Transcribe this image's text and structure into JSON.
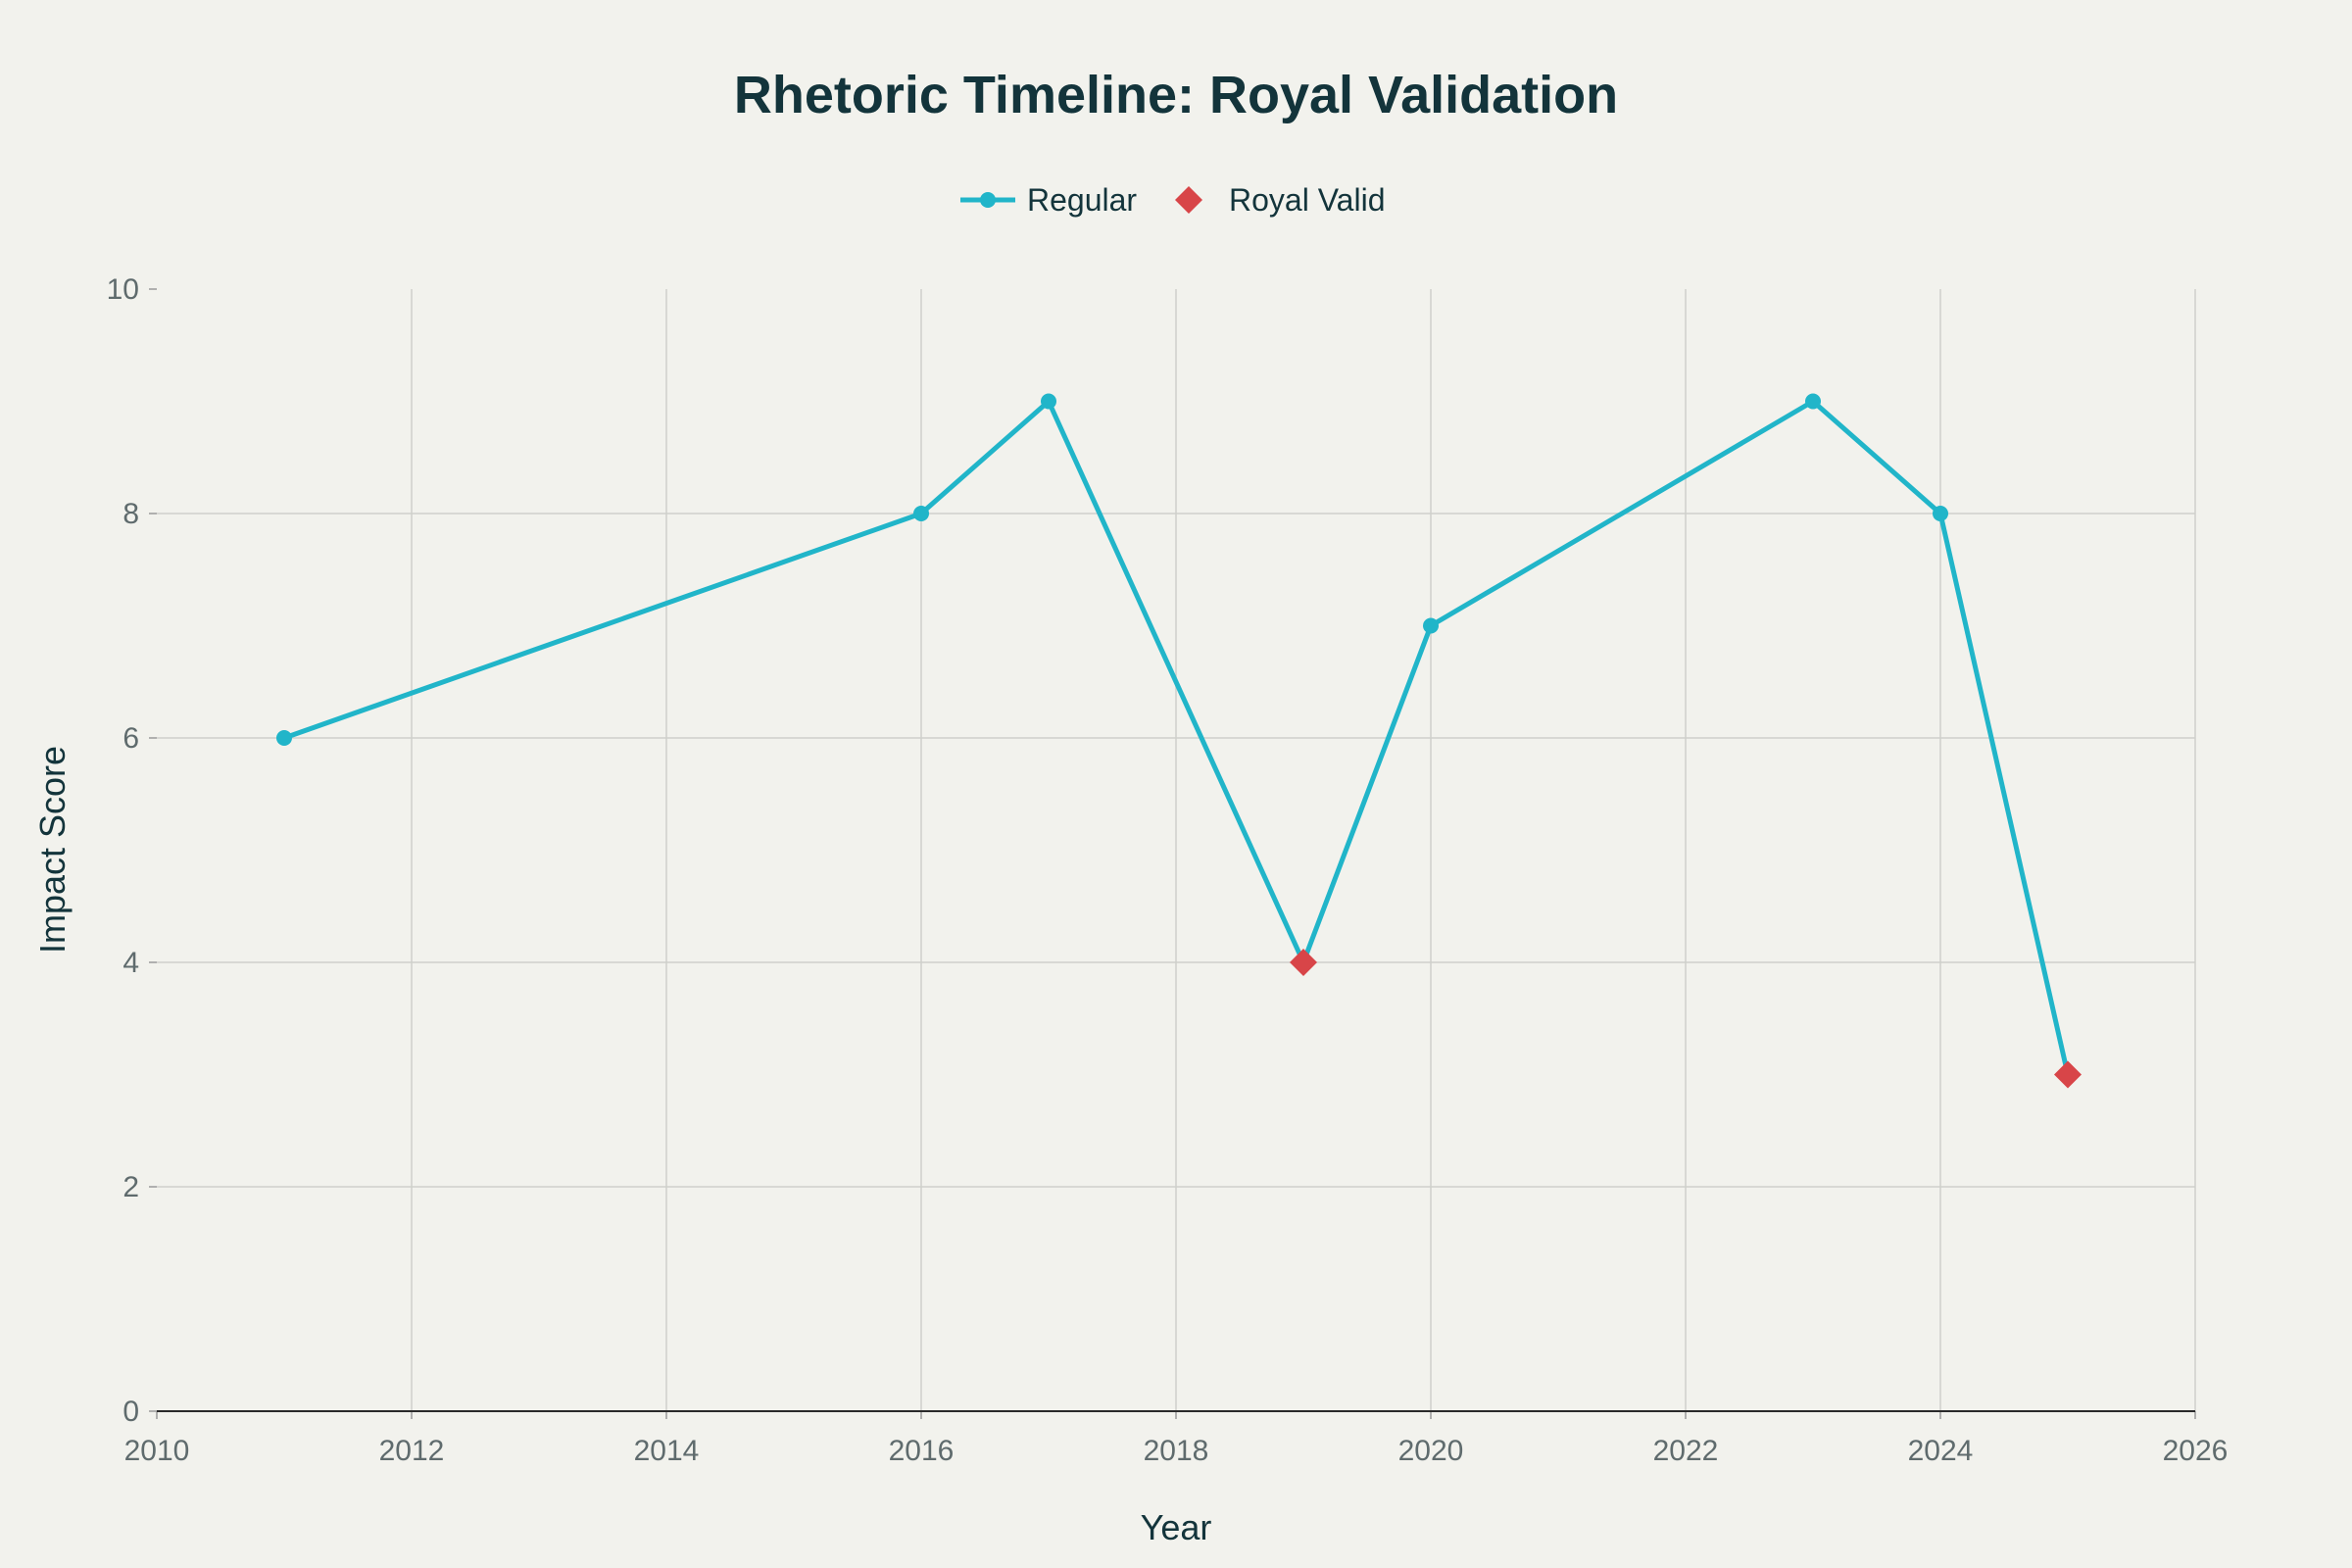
{
  "chart_data": {
    "type": "line",
    "title": "Rhetoric Timeline: Royal Validation",
    "xlabel": "Year",
    "ylabel": "Impact Score",
    "xlim": [
      2010,
      2026
    ],
    "ylim": [
      0,
      10
    ],
    "x_ticks": [
      2010,
      2012,
      2014,
      2016,
      2018,
      2020,
      2022,
      2024,
      2026
    ],
    "y_ticks": [
      0,
      2,
      4,
      6,
      8,
      10
    ],
    "grid": true,
    "legend_position": "top-center",
    "line": {
      "x": [
        2011,
        2016,
        2017,
        2019,
        2020,
        2023,
        2024,
        2025
      ],
      "y": [
        6,
        8,
        9,
        4,
        7,
        9,
        8,
        3
      ]
    },
    "series": [
      {
        "name": "Regular",
        "marker": "circle",
        "color": "#21b5c9",
        "x": [
          2011,
          2016,
          2017,
          2020,
          2023,
          2024
        ],
        "y": [
          6,
          8,
          9,
          7,
          9,
          8
        ]
      },
      {
        "name": "Royal Valid",
        "marker": "diamond",
        "color": "#d84548",
        "x": [
          2019,
          2025
        ],
        "y": [
          4,
          3
        ]
      }
    ]
  }
}
